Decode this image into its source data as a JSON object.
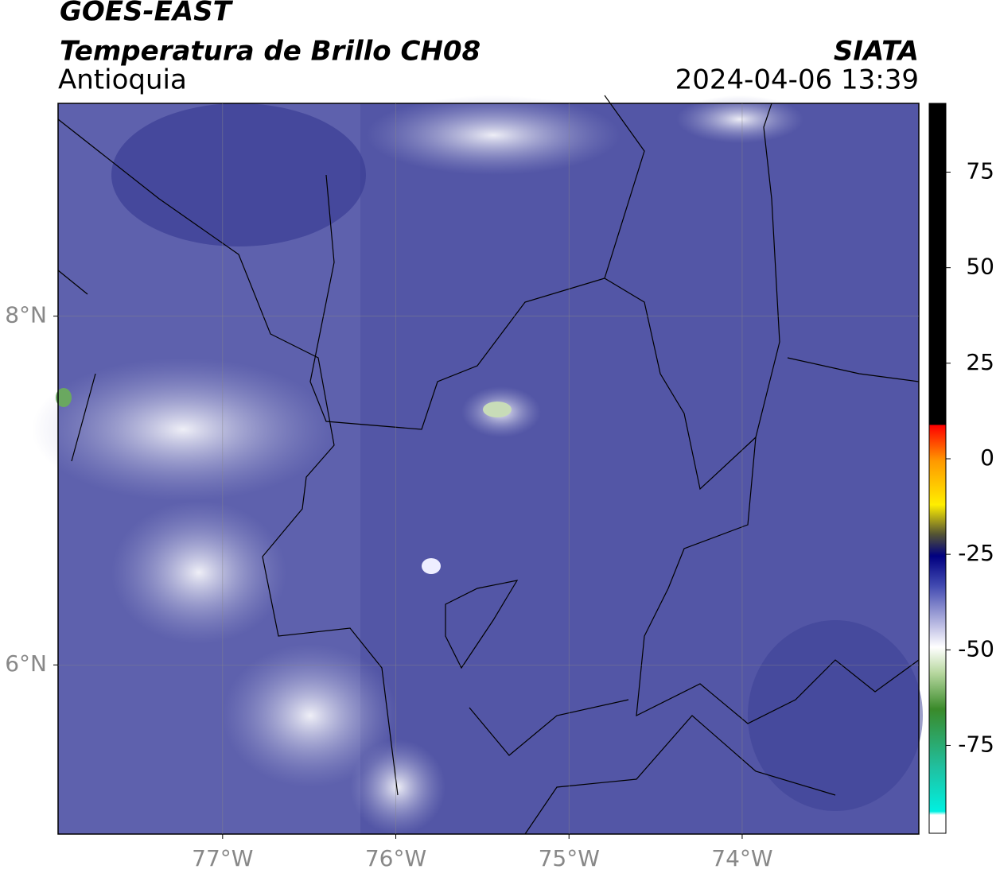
{
  "header": {
    "title": "GOES-EAST",
    "subtitle": "Temperatura de Brillo CH08",
    "region": "Antioquia",
    "source": "SIATA",
    "datetime": "2024-04-06 13:39"
  },
  "map": {
    "xlim": [
      -77.95,
      -72.98
    ],
    "ylim": [
      5.03,
      9.22
    ],
    "xticks": [
      {
        "value": -77,
        "label": "77°W"
      },
      {
        "value": -76,
        "label": "76°W"
      },
      {
        "value": -75,
        "label": "75°W"
      },
      {
        "value": -74,
        "label": "74°W"
      }
    ],
    "yticks": [
      {
        "value": 8,
        "label": "8°N"
      },
      {
        "value": 6,
        "label": "6°N"
      }
    ],
    "grid": true
  },
  "colorbar": {
    "clim": [
      -98,
      93
    ],
    "ticks": [
      75,
      50,
      25,
      0,
      -25,
      -50,
      -75
    ]
  }
}
